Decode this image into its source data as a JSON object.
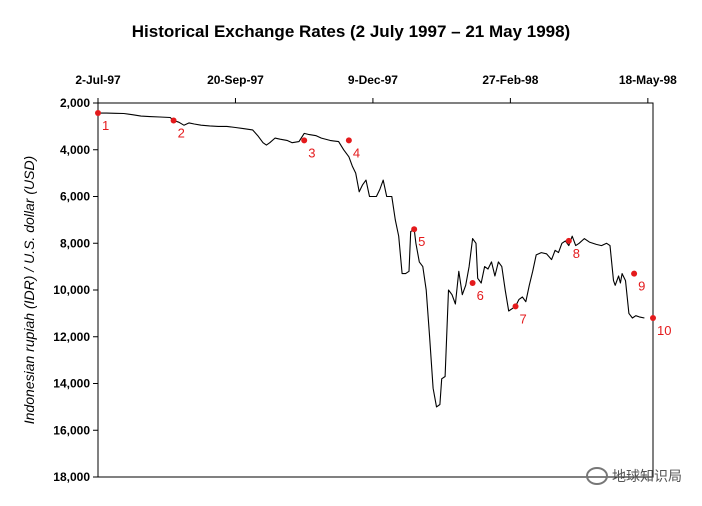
{
  "chart_data": {
    "type": "line",
    "title": "Historical Exchange Rates (2 July 1997 – 21 May 1998)",
    "xlabel": "",
    "ylabel": "Indonesian rupiah (IDR) / U.S. dollar (USD)",
    "x_ticks": [
      {
        "label": "2-Jul-97",
        "day": 0
      },
      {
        "label": "20-Sep-97",
        "day": 80
      },
      {
        "label": "9-Dec-97",
        "day": 160
      },
      {
        "label": "27-Feb-98",
        "day": 240
      },
      {
        "label": "18-May-98",
        "day": 320
      }
    ],
    "xlim": [
      0,
      323
    ],
    "y_ticks": [
      {
        "label": "2,000",
        "value": 2000
      },
      {
        "label": "4,000",
        "value": 4000
      },
      {
        "label": "6,000",
        "value": 6000
      },
      {
        "label": "8,000",
        "value": 8000
      },
      {
        "label": "10,000",
        "value": 10000
      },
      {
        "label": "12,000",
        "value": 12000
      },
      {
        "label": "14,000",
        "value": 14000
      },
      {
        "label": "16,000",
        "value": 16000
      },
      {
        "label": "18,000",
        "value": 18000
      }
    ],
    "ylim": [
      2000,
      18000
    ],
    "y_inverted": true,
    "series": [
      {
        "name": "IDR/USD",
        "color": "#000000",
        "points": [
          [
            0,
            2430
          ],
          [
            5,
            2430
          ],
          [
            10,
            2440
          ],
          [
            15,
            2450
          ],
          [
            20,
            2500
          ],
          [
            25,
            2560
          ],
          [
            30,
            2580
          ],
          [
            36,
            2600
          ],
          [
            42,
            2620
          ],
          [
            44,
            2750
          ],
          [
            47,
            2820
          ],
          [
            50,
            2950
          ],
          [
            53,
            2850
          ],
          [
            56,
            2900
          ],
          [
            60,
            2950
          ],
          [
            65,
            2980
          ],
          [
            70,
            3000
          ],
          [
            75,
            3000
          ],
          [
            80,
            3050
          ],
          [
            85,
            3100
          ],
          [
            90,
            3150
          ],
          [
            93,
            3400
          ],
          [
            96,
            3700
          ],
          [
            98,
            3800
          ],
          [
            100,
            3700
          ],
          [
            103,
            3500
          ],
          [
            106,
            3550
          ],
          [
            110,
            3600
          ],
          [
            113,
            3700
          ],
          [
            117,
            3650
          ],
          [
            120,
            3300
          ],
          [
            123,
            3350
          ],
          [
            127,
            3400
          ],
          [
            130,
            3500
          ],
          [
            135,
            3600
          ],
          [
            137,
            3620
          ],
          [
            140,
            3650
          ],
          [
            143,
            4000
          ],
          [
            146,
            4300
          ],
          [
            148,
            4700
          ],
          [
            150,
            5000
          ],
          [
            152,
            5800
          ],
          [
            154,
            5500
          ],
          [
            156,
            5300
          ],
          [
            158,
            6000
          ],
          [
            162,
            6000
          ],
          [
            164,
            5700
          ],
          [
            166,
            5300
          ],
          [
            168,
            6000
          ],
          [
            171,
            6000
          ],
          [
            173,
            7000
          ],
          [
            175,
            7700
          ],
          [
            177,
            9300
          ],
          [
            179,
            9300
          ],
          [
            181,
            9200
          ],
          [
            182,
            7500
          ],
          [
            184,
            7400
          ],
          [
            185,
            8000
          ],
          [
            187,
            8800
          ],
          [
            189,
            9000
          ],
          [
            191,
            10000
          ],
          [
            193,
            12000
          ],
          [
            195,
            14200
          ],
          [
            197,
            15000
          ],
          [
            199,
            14900
          ],
          [
            200,
            13800
          ],
          [
            202,
            13700
          ],
          [
            204,
            10000
          ],
          [
            206,
            10200
          ],
          [
            208,
            10600
          ],
          [
            210,
            9200
          ],
          [
            212,
            10200
          ],
          [
            214,
            9800
          ],
          [
            216,
            9000
          ],
          [
            218,
            7800
          ],
          [
            220,
            8000
          ],
          [
            221,
            9500
          ],
          [
            223,
            9700
          ],
          [
            225,
            9000
          ],
          [
            227,
            9100
          ],
          [
            229,
            8800
          ],
          [
            231,
            9400
          ],
          [
            233,
            8800
          ],
          [
            235,
            9000
          ],
          [
            237,
            10000
          ],
          [
            239,
            10900
          ],
          [
            241,
            10800
          ],
          [
            243,
            10700
          ],
          [
            245,
            10400
          ],
          [
            247,
            10300
          ],
          [
            249,
            10500
          ],
          [
            251,
            9800
          ],
          [
            253,
            9200
          ],
          [
            255,
            8500
          ],
          [
            258,
            8400
          ],
          [
            261,
            8450
          ],
          [
            264,
            8700
          ],
          [
            266,
            8300
          ],
          [
            268,
            8400
          ],
          [
            270,
            8000
          ],
          [
            272,
            7900
          ],
          [
            274,
            8100
          ],
          [
            276,
            7700
          ],
          [
            278,
            8100
          ],
          [
            280,
            8000
          ],
          [
            283,
            7800
          ],
          [
            286,
            7950
          ],
          [
            290,
            8050
          ],
          [
            293,
            8100
          ],
          [
            296,
            8000
          ],
          [
            298,
            8100
          ],
          [
            300,
            9600
          ],
          [
            301,
            9800
          ],
          [
            303,
            9400
          ],
          [
            304,
            9700
          ],
          [
            305,
            9300
          ],
          [
            307,
            9600
          ],
          [
            309,
            11000
          ],
          [
            311,
            11200
          ],
          [
            313,
            11100
          ],
          [
            315,
            11150
          ],
          [
            318,
            11200
          ]
        ]
      }
    ],
    "annotations": [
      {
        "label": "1",
        "day": 0,
        "value": 2430
      },
      {
        "label": "2",
        "day": 44,
        "value": 2750
      },
      {
        "label": "3",
        "day": 120,
        "value": 3600
      },
      {
        "label": "4",
        "day": 146,
        "value": 3600
      },
      {
        "label": "5",
        "day": 184,
        "value": 7400
      },
      {
        "label": "6",
        "day": 218,
        "value": 9700
      },
      {
        "label": "7",
        "day": 243,
        "value": 10700
      },
      {
        "label": "8",
        "day": 274,
        "value": 7900
      },
      {
        "label": "9",
        "day": 312,
        "value": 9300
      },
      {
        "label": "10",
        "day": 323,
        "value": 11200
      }
    ],
    "annotation_color": "#e41a1c",
    "grid": false,
    "legend": "none"
  },
  "watermark": {
    "text": "地球知识局"
  }
}
